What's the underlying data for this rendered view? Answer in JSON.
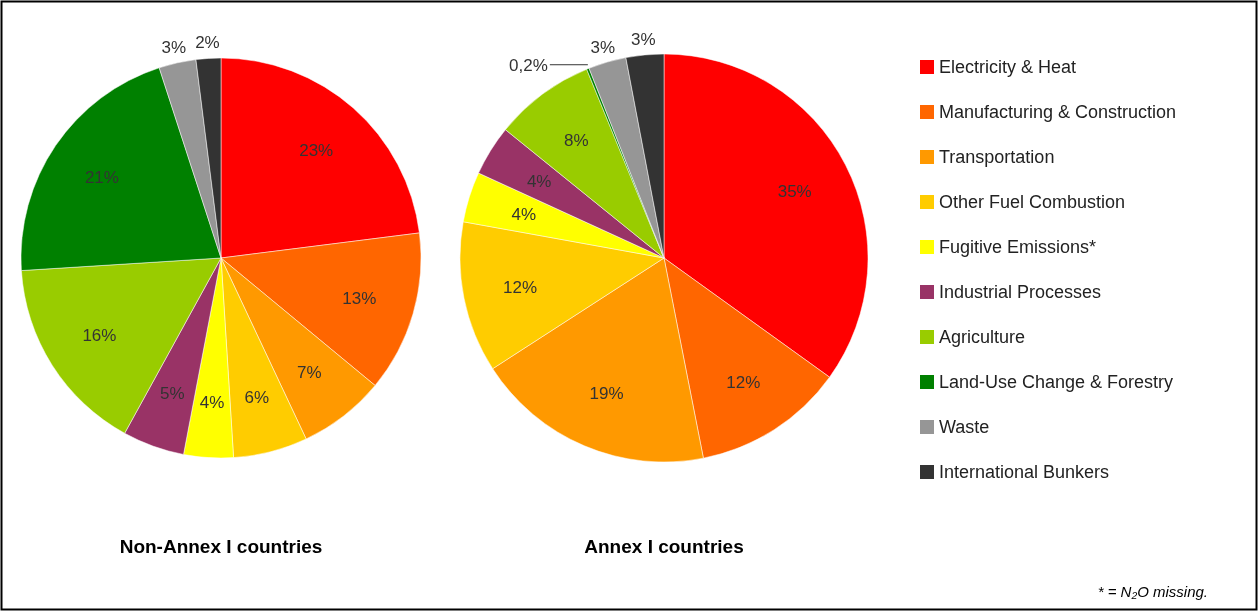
{
  "chart_data": {
    "type": "pie",
    "categories": [
      "Electricity & Heat",
      "Manufacturing & Construction",
      "Transportation",
      "Other Fuel Combustion",
      "Fugitive Emissions*",
      "Industrial Processes",
      "Agriculture",
      "Land-Use Change & Forestry",
      "Waste",
      "International Bunkers"
    ],
    "colors": [
      "#ff0000",
      "#ff6600",
      "#ff9900",
      "#ffcc00",
      "#ffff00",
      "#993366",
      "#99cc00",
      "#008000",
      "#969696",
      "#333333"
    ],
    "series": [
      {
        "name": "Non-Annex I countries",
        "values": [
          23,
          13,
          7,
          6,
          4,
          5,
          16,
          21,
          3,
          2
        ],
        "value_labels": [
          "23%",
          "13%",
          "7%",
          "6%",
          "4%",
          "5%",
          "16%",
          "21%",
          "3%",
          "2%"
        ]
      },
      {
        "name": "Annex I countries",
        "values": [
          35,
          12,
          19,
          12,
          4,
          4,
          8,
          0.2,
          3,
          3
        ],
        "value_labels": [
          "35%",
          "12%",
          "19%",
          "12%",
          "4%",
          "4%",
          "8%",
          "0,2%",
          "3%",
          "3%"
        ]
      }
    ],
    "legend": "right",
    "annotations": [
      "* = N₂O missing."
    ]
  }
}
